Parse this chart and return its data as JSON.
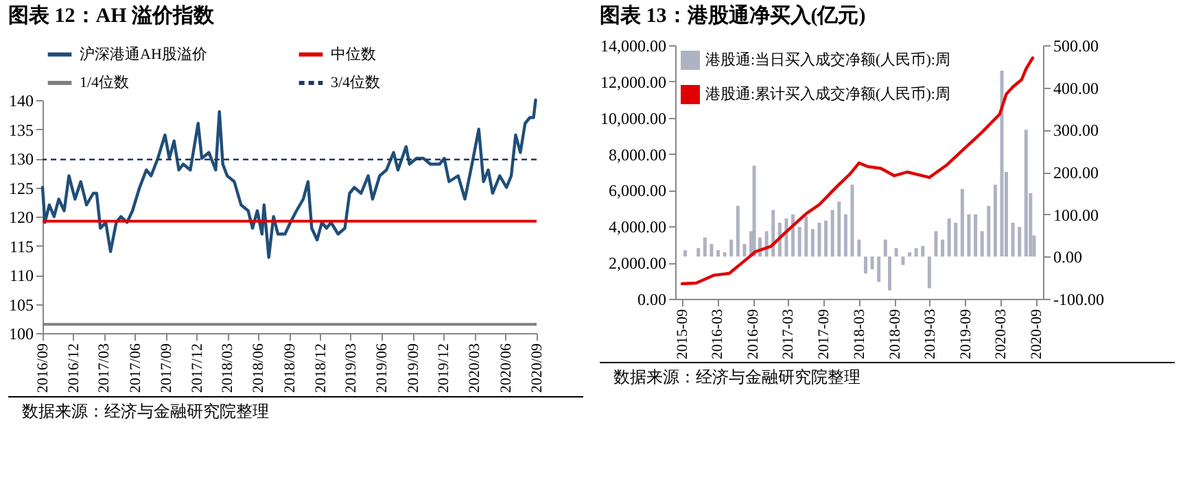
{
  "chart_data": [
    {
      "type": "line",
      "title": "图表 12：AH 溢价指数",
      "x": [
        "2016-09-01",
        "2016-09-08",
        "2016-09-21",
        "2016-10-05",
        "2016-10-19",
        "2016-11-04",
        "2016-11-18",
        "2016-12-06",
        "2016-12-23",
        "2017-01-09",
        "2017-01-29",
        "2017-02-08",
        "2017-02-19",
        "2017-03-07",
        "2017-03-21",
        "2017-04-07",
        "2017-04-21",
        "2017-05-09",
        "2017-05-25",
        "2017-06-15",
        "2017-07-05",
        "2017-07-19",
        "2017-08-08",
        "2017-08-29",
        "2017-09-11",
        "2017-09-25",
        "2017-10-09",
        "2017-10-22",
        "2017-11-12",
        "2017-12-05",
        "2017-12-16",
        "2018-01-06",
        "2018-01-26",
        "2018-02-06",
        "2018-02-16",
        "2018-03-01",
        "2018-03-22",
        "2018-04-11",
        "2018-05-02",
        "2018-05-15",
        "2018-05-29",
        "2018-06-12",
        "2018-06-18",
        "2018-07-02",
        "2018-07-16",
        "2018-07-29",
        "2018-08-19",
        "2018-09-04",
        "2018-09-22",
        "2018-10-12",
        "2018-10-26",
        "2018-11-06",
        "2018-11-22",
        "2018-12-06",
        "2018-12-20",
        "2019-01-02",
        "2019-01-23",
        "2019-02-12",
        "2019-02-26",
        "2019-03-12",
        "2019-04-01",
        "2019-04-22",
        "2019-05-05",
        "2019-05-26",
        "2019-06-15",
        "2019-07-06",
        "2019-07-19",
        "2019-08-12",
        "2019-08-22",
        "2019-09-12",
        "2019-10-02",
        "2019-10-23",
        "2019-11-19",
        "2019-12-03",
        "2019-12-17",
        "2020-01-13",
        "2020-02-02",
        "2020-02-23",
        "2020-03-14",
        "2020-03-28",
        "2020-04-11",
        "2020-04-24",
        "2020-05-15",
        "2020-06-04",
        "2020-06-18",
        "2020-07-01",
        "2020-07-15",
        "2020-07-29",
        "2020-08-12",
        "2020-08-23",
        "2020-08-29"
      ],
      "series": [
        {
          "name": "沪深港通AH股溢价",
          "color": "#1f4e79",
          "values": [
            125,
            119,
            122,
            120,
            123,
            121,
            127,
            123,
            126,
            122,
            124,
            124,
            118,
            119,
            114,
            119,
            120,
            119,
            121,
            125,
            128,
            127,
            130,
            134,
            130,
            133,
            128,
            129,
            128,
            136,
            130,
            131,
            128,
            138,
            129,
            127,
            126,
            122,
            121,
            118,
            121,
            117,
            122,
            113,
            120,
            117,
            117,
            119,
            121,
            123,
            126,
            118,
            116,
            119,
            118,
            119,
            117,
            118,
            124,
            125,
            124,
            127,
            123,
            127,
            128,
            131,
            128,
            132,
            129,
            130,
            130,
            129,
            129,
            130,
            126,
            127,
            123,
            129,
            135,
            126,
            128,
            124,
            127,
            125,
            127,
            134,
            131,
            136,
            137,
            137,
            140
          ]
        }
      ],
      "ref_lines": [
        {
          "axis": "y",
          "value": 119.2,
          "label": "中位数",
          "color": "#e00000",
          "line_style": "solid"
        },
        {
          "axis": "y",
          "value": 101.5,
          "label": "1/4位数",
          "color": "#808080",
          "line_style": "solid"
        },
        {
          "axis": "y",
          "value": 129.8,
          "label": "3/4位数",
          "color": "#1f3864",
          "line_style": "dashed"
        }
      ],
      "xlim": [
        "2016-09",
        "2020-09"
      ],
      "xticks": [
        {
          "value": "2016-09",
          "label": "2016/09"
        },
        {
          "value": "2016-12",
          "label": "2016/12"
        },
        {
          "value": "2017-03",
          "label": "2017/03"
        },
        {
          "value": "2017-06",
          "label": "2017/06"
        },
        {
          "value": "2017-09",
          "label": "2017/09"
        },
        {
          "value": "2017-12",
          "label": "2017/12"
        },
        {
          "value": "2018-03",
          "label": "2018/03"
        },
        {
          "value": "2018-06",
          "label": "2018/06"
        },
        {
          "value": "2018-09",
          "label": "2018/09"
        },
        {
          "value": "2018-12",
          "label": "2018/12"
        },
        {
          "value": "2019-03",
          "label": "2019/03"
        },
        {
          "value": "2019-06",
          "label": "2019/06"
        },
        {
          "value": "2019-09",
          "label": "2019/09"
        },
        {
          "value": "2019-12",
          "label": "2019/12"
        },
        {
          "value": "2020-03",
          "label": "2020/03"
        },
        {
          "value": "2020-06",
          "label": "2020/06"
        },
        {
          "value": "2020-09",
          "label": "2020/09"
        }
      ],
      "ylim": [
        100,
        140
      ],
      "yticks": [
        100,
        105,
        110,
        115,
        120,
        125,
        130,
        135,
        140
      ],
      "legend": "top",
      "annotations": [
        "数据来源：经济与金融研究院整理"
      ]
    },
    {
      "type": "bar",
      "title": "图表 13：港股通净买入(亿元)",
      "series": [
        {
          "name": "港股通:当日买入成交净额(人民币):周",
          "axis": "y2",
          "color": "#aeb2c2",
          "x": [
            "2015-09-17",
            "2015-10-21",
            "2015-11-24",
            "2015-12-28",
            "2016-01-31",
            "2016-03-05",
            "2016-04-08",
            "2016-05-12",
            "2016-06-15",
            "2016-07-19",
            "2016-08-22",
            "2016-09-07",
            "2016-10-07",
            "2016-11-10",
            "2016-12-14",
            "2017-01-17",
            "2017-02-20",
            "2017-03-26",
            "2017-04-29",
            "2017-06-02",
            "2017-07-06",
            "2017-08-09",
            "2017-09-12",
            "2017-10-16",
            "2017-11-19",
            "2017-12-23",
            "2018-01-26",
            "2018-03-02",
            "2018-04-05",
            "2018-05-09",
            "2018-06-12",
            "2018-07-16",
            "2018-08-07",
            "2018-09-10",
            "2018-10-15",
            "2018-11-18",
            "2018-12-22",
            "2019-01-25",
            "2019-02-28",
            "2019-04-03",
            "2019-05-07",
            "2019-06-10",
            "2019-07-14",
            "2019-08-17",
            "2019-09-20",
            "2019-10-24",
            "2019-11-27",
            "2019-12-31",
            "2020-02-03",
            "2020-03-08",
            "2020-03-31",
            "2020-05-04",
            "2020-06-07",
            "2020-07-11",
            "2020-08-03",
            "2020-08-21"
          ],
          "values": [
            15,
            null,
            20,
            45,
            30,
            15,
            10,
            40,
            120,
            30,
            60,
            215,
            45,
            60,
            110,
            80,
            90,
            100,
            70,
            95,
            65,
            80,
            85,
            110,
            130,
            100,
            170,
            40,
            -40,
            -30,
            -60,
            40,
            -80,
            20,
            -20,
            10,
            20,
            25,
            -75,
            60,
            40,
            90,
            80,
            160,
            100,
            100,
            60,
            120,
            170,
            440,
            200,
            80,
            70,
            300,
            150,
            50
          ]
        },
        {
          "name": "港股通:累计买入成交净额(人民币):周",
          "type": "line",
          "color": "#e00000",
          "x": [
            "2015-09-01",
            "2015-11-13",
            "2016-02-11",
            "2016-05-01",
            "2016-07-08",
            "2016-09-14",
            "2016-12-03",
            "2017-02-09",
            "2017-06-02",
            "2017-08-09",
            "2017-11-08",
            "2018-01-15",
            "2018-03-02",
            "2018-04-16",
            "2018-06-23",
            "2018-08-30",
            "2018-11-06",
            "2019-02-28",
            "2019-05-30",
            "2019-08-28",
            "2019-11-27",
            "2020-02-26",
            "2020-03-31",
            "2020-05-04",
            "2020-06-18",
            "2020-07-11",
            "2020-08-14"
          ],
          "values": [
            830,
            870,
            1300,
            1400,
            2000,
            2600,
            2900,
            3600,
            4700,
            5200,
            6200,
            6900,
            7500,
            7300,
            7200,
            6800,
            7000,
            6700,
            7400,
            8300,
            9200,
            10200,
            11300,
            11700,
            12100,
            12700,
            13300
          ]
        }
      ],
      "xlim": [
        "2015-09",
        "2020-09"
      ],
      "xticks": [
        "2015-09",
        "2016-03",
        "2016-09",
        "2017-03",
        "2017-09",
        "2018-03",
        "2018-09",
        "2019-03",
        "2019-09",
        "2020-03",
        "2020-09"
      ],
      "ylim": [
        0,
        14000
      ],
      "yticks": [
        {
          "value": 0,
          "label": "0.00"
        },
        {
          "value": 2000,
          "label": "2,000.00"
        },
        {
          "value": 4000,
          "label": "4,000.00"
        },
        {
          "value": 6000,
          "label": "6,000.00"
        },
        {
          "value": 8000,
          "label": "8,000.00"
        },
        {
          "value": 10000,
          "label": "10,000.00"
        },
        {
          "value": 12000,
          "label": "12,000.00"
        },
        {
          "value": 14000,
          "label": "14,000.00"
        }
      ],
      "y2lim": [
        -100,
        500
      ],
      "y2ticks": [
        {
          "value": -100,
          "label": "-100.00"
        },
        {
          "value": 0,
          "label": "0.00"
        },
        {
          "value": 100,
          "label": "100.00"
        },
        {
          "value": 200,
          "label": "200.00"
        },
        {
          "value": 300,
          "label": "300.00"
        },
        {
          "value": 400,
          "label": "400.00"
        },
        {
          "value": 500,
          "label": "500.00"
        }
      ],
      "legend": "top left",
      "annotations": [
        "数据来源：经济与金融研究院整理"
      ]
    }
  ]
}
